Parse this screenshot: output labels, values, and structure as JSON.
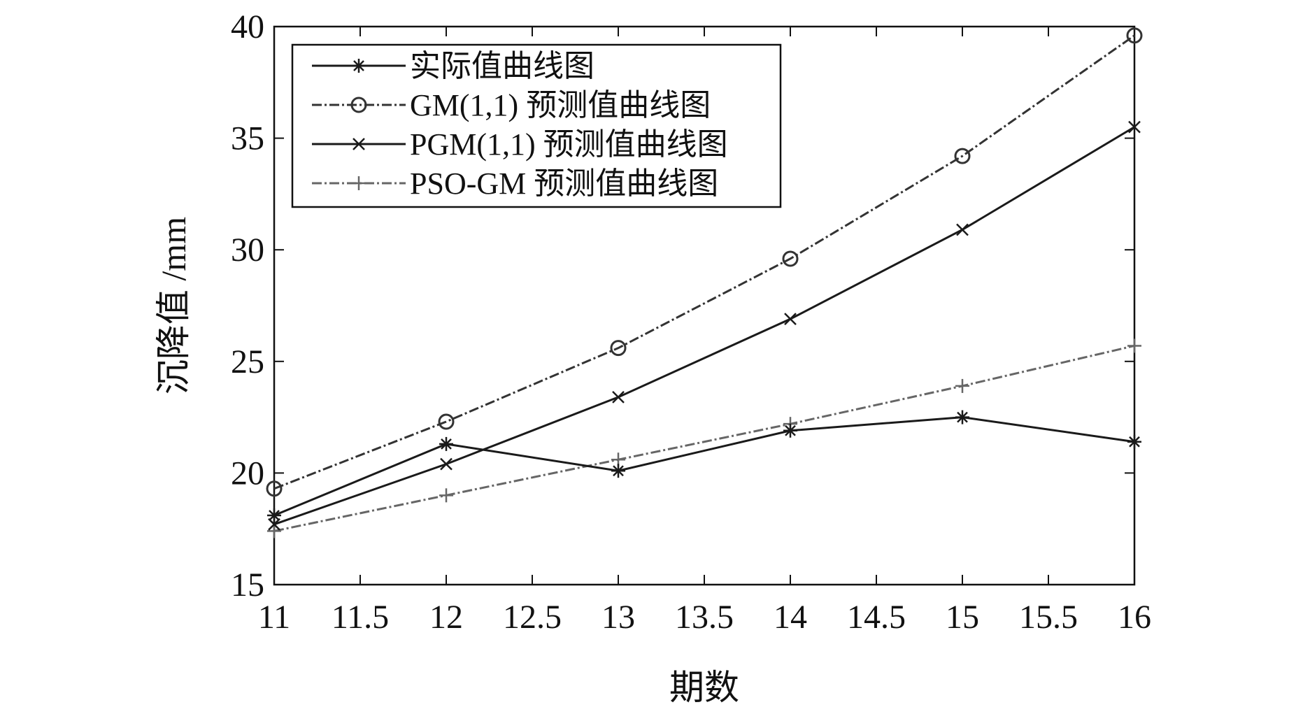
{
  "chart_data": {
    "type": "line",
    "xlabel": "期数",
    "ylabel": "沉降值 /mm",
    "xlim": [
      11,
      16
    ],
    "ylim": [
      15,
      40
    ],
    "grid": false,
    "legend_position": "top-left",
    "x_ticks": [
      "11",
      "11.5",
      "12",
      "12.5",
      "13",
      "13.5",
      "14",
      "14.5",
      "15",
      "15.5",
      "16"
    ],
    "y_ticks": [
      "15",
      "20",
      "25",
      "30",
      "35",
      "40"
    ],
    "x": [
      11,
      12,
      13,
      14,
      15,
      16
    ],
    "series": [
      {
        "name": "实际值曲线图",
        "marker": "asterisk",
        "line_style": "solid",
        "color": "#1a1a1a",
        "values": [
          18.1,
          21.3,
          20.1,
          21.9,
          22.5,
          21.4
        ]
      },
      {
        "name": "GM(1,1) 预测值曲线图",
        "marker": "circle",
        "line_style": "dashdot",
        "color": "#333333",
        "values": [
          19.3,
          22.3,
          25.6,
          29.6,
          34.2,
          39.6
        ]
      },
      {
        "name": "PGM(1,1) 预测值曲线图",
        "marker": "x",
        "line_style": "solid",
        "color": "#1a1a1a",
        "values": [
          17.7,
          20.4,
          23.4,
          26.9,
          30.9,
          35.5
        ]
      },
      {
        "name": "PSO-GM 预测值曲线图",
        "marker": "plus",
        "line_style": "dashdot",
        "color": "#666666",
        "values": [
          17.4,
          19.0,
          20.6,
          22.2,
          23.9,
          25.7
        ]
      }
    ]
  }
}
